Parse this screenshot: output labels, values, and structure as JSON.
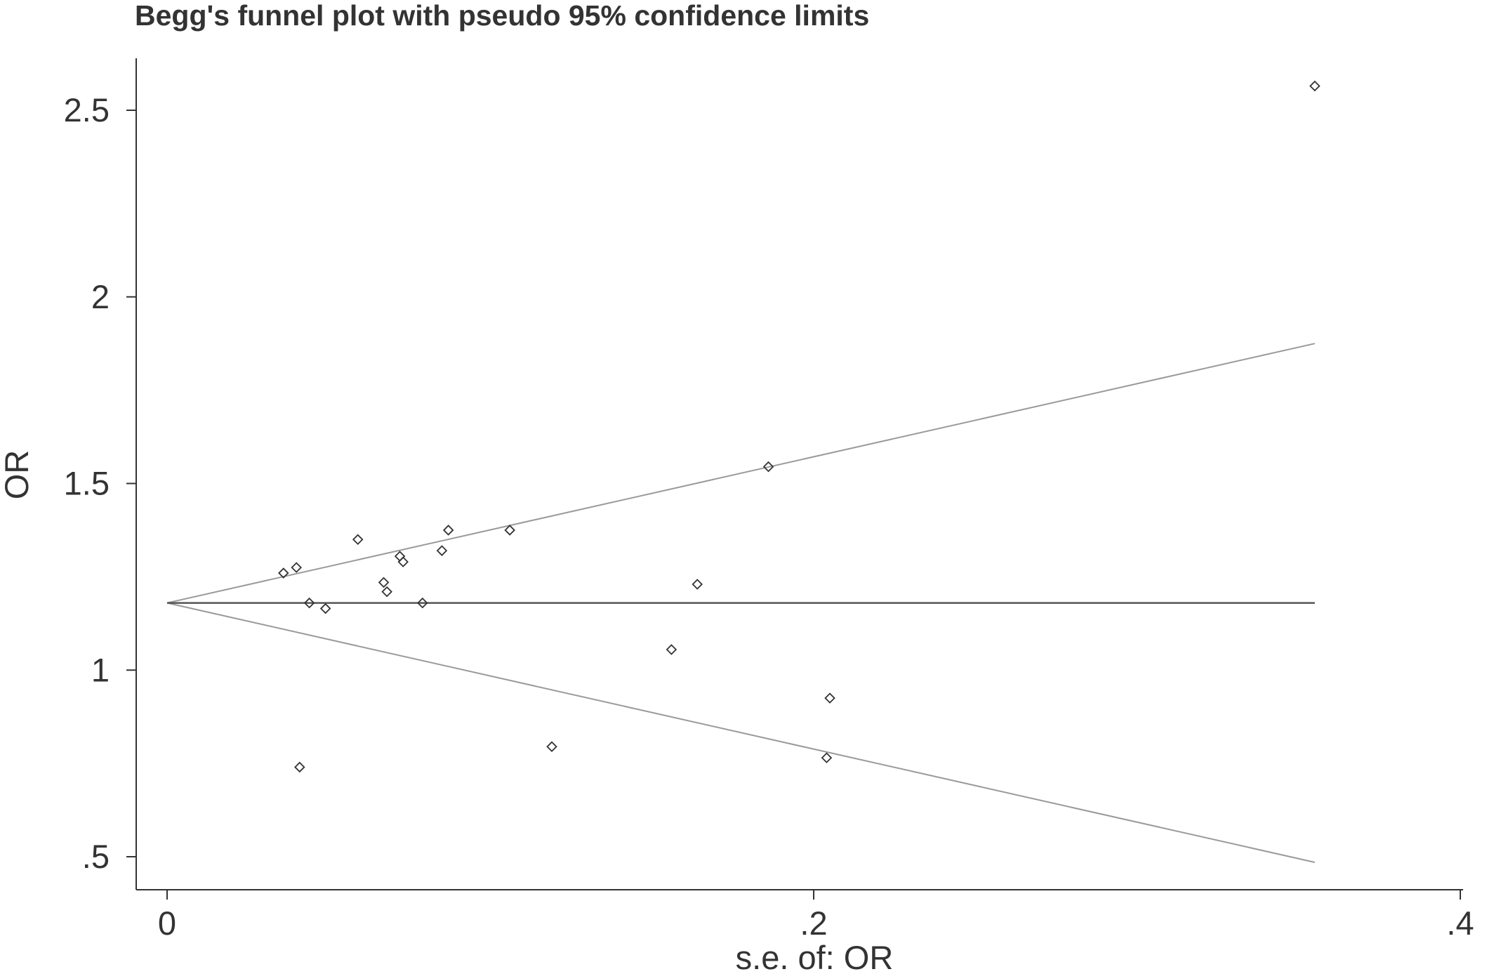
{
  "chart_data": {
    "type": "scatter",
    "title": "Begg's funnel plot with pseudo 95% confidence limits",
    "xlabel": "s.e. of: OR",
    "ylabel": "OR",
    "xlim": [
      0,
      0.4
    ],
    "ylim": [
      0.5,
      2.5
    ],
    "x_ticks": [
      {
        "value": 0,
        "label": "0"
      },
      {
        "value": 0.2,
        "label": ".2"
      },
      {
        "value": 0.4,
        "label": ".4"
      }
    ],
    "y_ticks": [
      {
        "value": 0.5,
        "label": ".5"
      },
      {
        "value": 1,
        "label": "1"
      },
      {
        "value": 1.5,
        "label": "1.5"
      },
      {
        "value": 2,
        "label": "2"
      },
      {
        "value": 2.5,
        "label": "2.5"
      }
    ],
    "grid": false,
    "pooled_estimate": 1.18,
    "pseudo_ci_limits": {
      "se_range": [
        0,
        0.355
      ],
      "upper_at_max_se": 1.875,
      "lower_at_max_se": 0.485
    },
    "points": [
      {
        "x": 0.036,
        "y": 1.26
      },
      {
        "x": 0.04,
        "y": 1.275
      },
      {
        "x": 0.041,
        "y": 0.74
      },
      {
        "x": 0.044,
        "y": 1.18
      },
      {
        "x": 0.049,
        "y": 1.165
      },
      {
        "x": 0.059,
        "y": 1.35
      },
      {
        "x": 0.067,
        "y": 1.235
      },
      {
        "x": 0.068,
        "y": 1.21
      },
      {
        "x": 0.072,
        "y": 1.305
      },
      {
        "x": 0.073,
        "y": 1.29
      },
      {
        "x": 0.079,
        "y": 1.18
      },
      {
        "x": 0.085,
        "y": 1.32
      },
      {
        "x": 0.087,
        "y": 1.375
      },
      {
        "x": 0.106,
        "y": 1.375
      },
      {
        "x": 0.119,
        "y": 0.795
      },
      {
        "x": 0.156,
        "y": 1.055
      },
      {
        "x": 0.164,
        "y": 1.23
      },
      {
        "x": 0.186,
        "y": 1.545
      },
      {
        "x": 0.204,
        "y": 0.765
      },
      {
        "x": 0.205,
        "y": 0.925
      },
      {
        "x": 0.355,
        "y": 2.565
      }
    ]
  }
}
